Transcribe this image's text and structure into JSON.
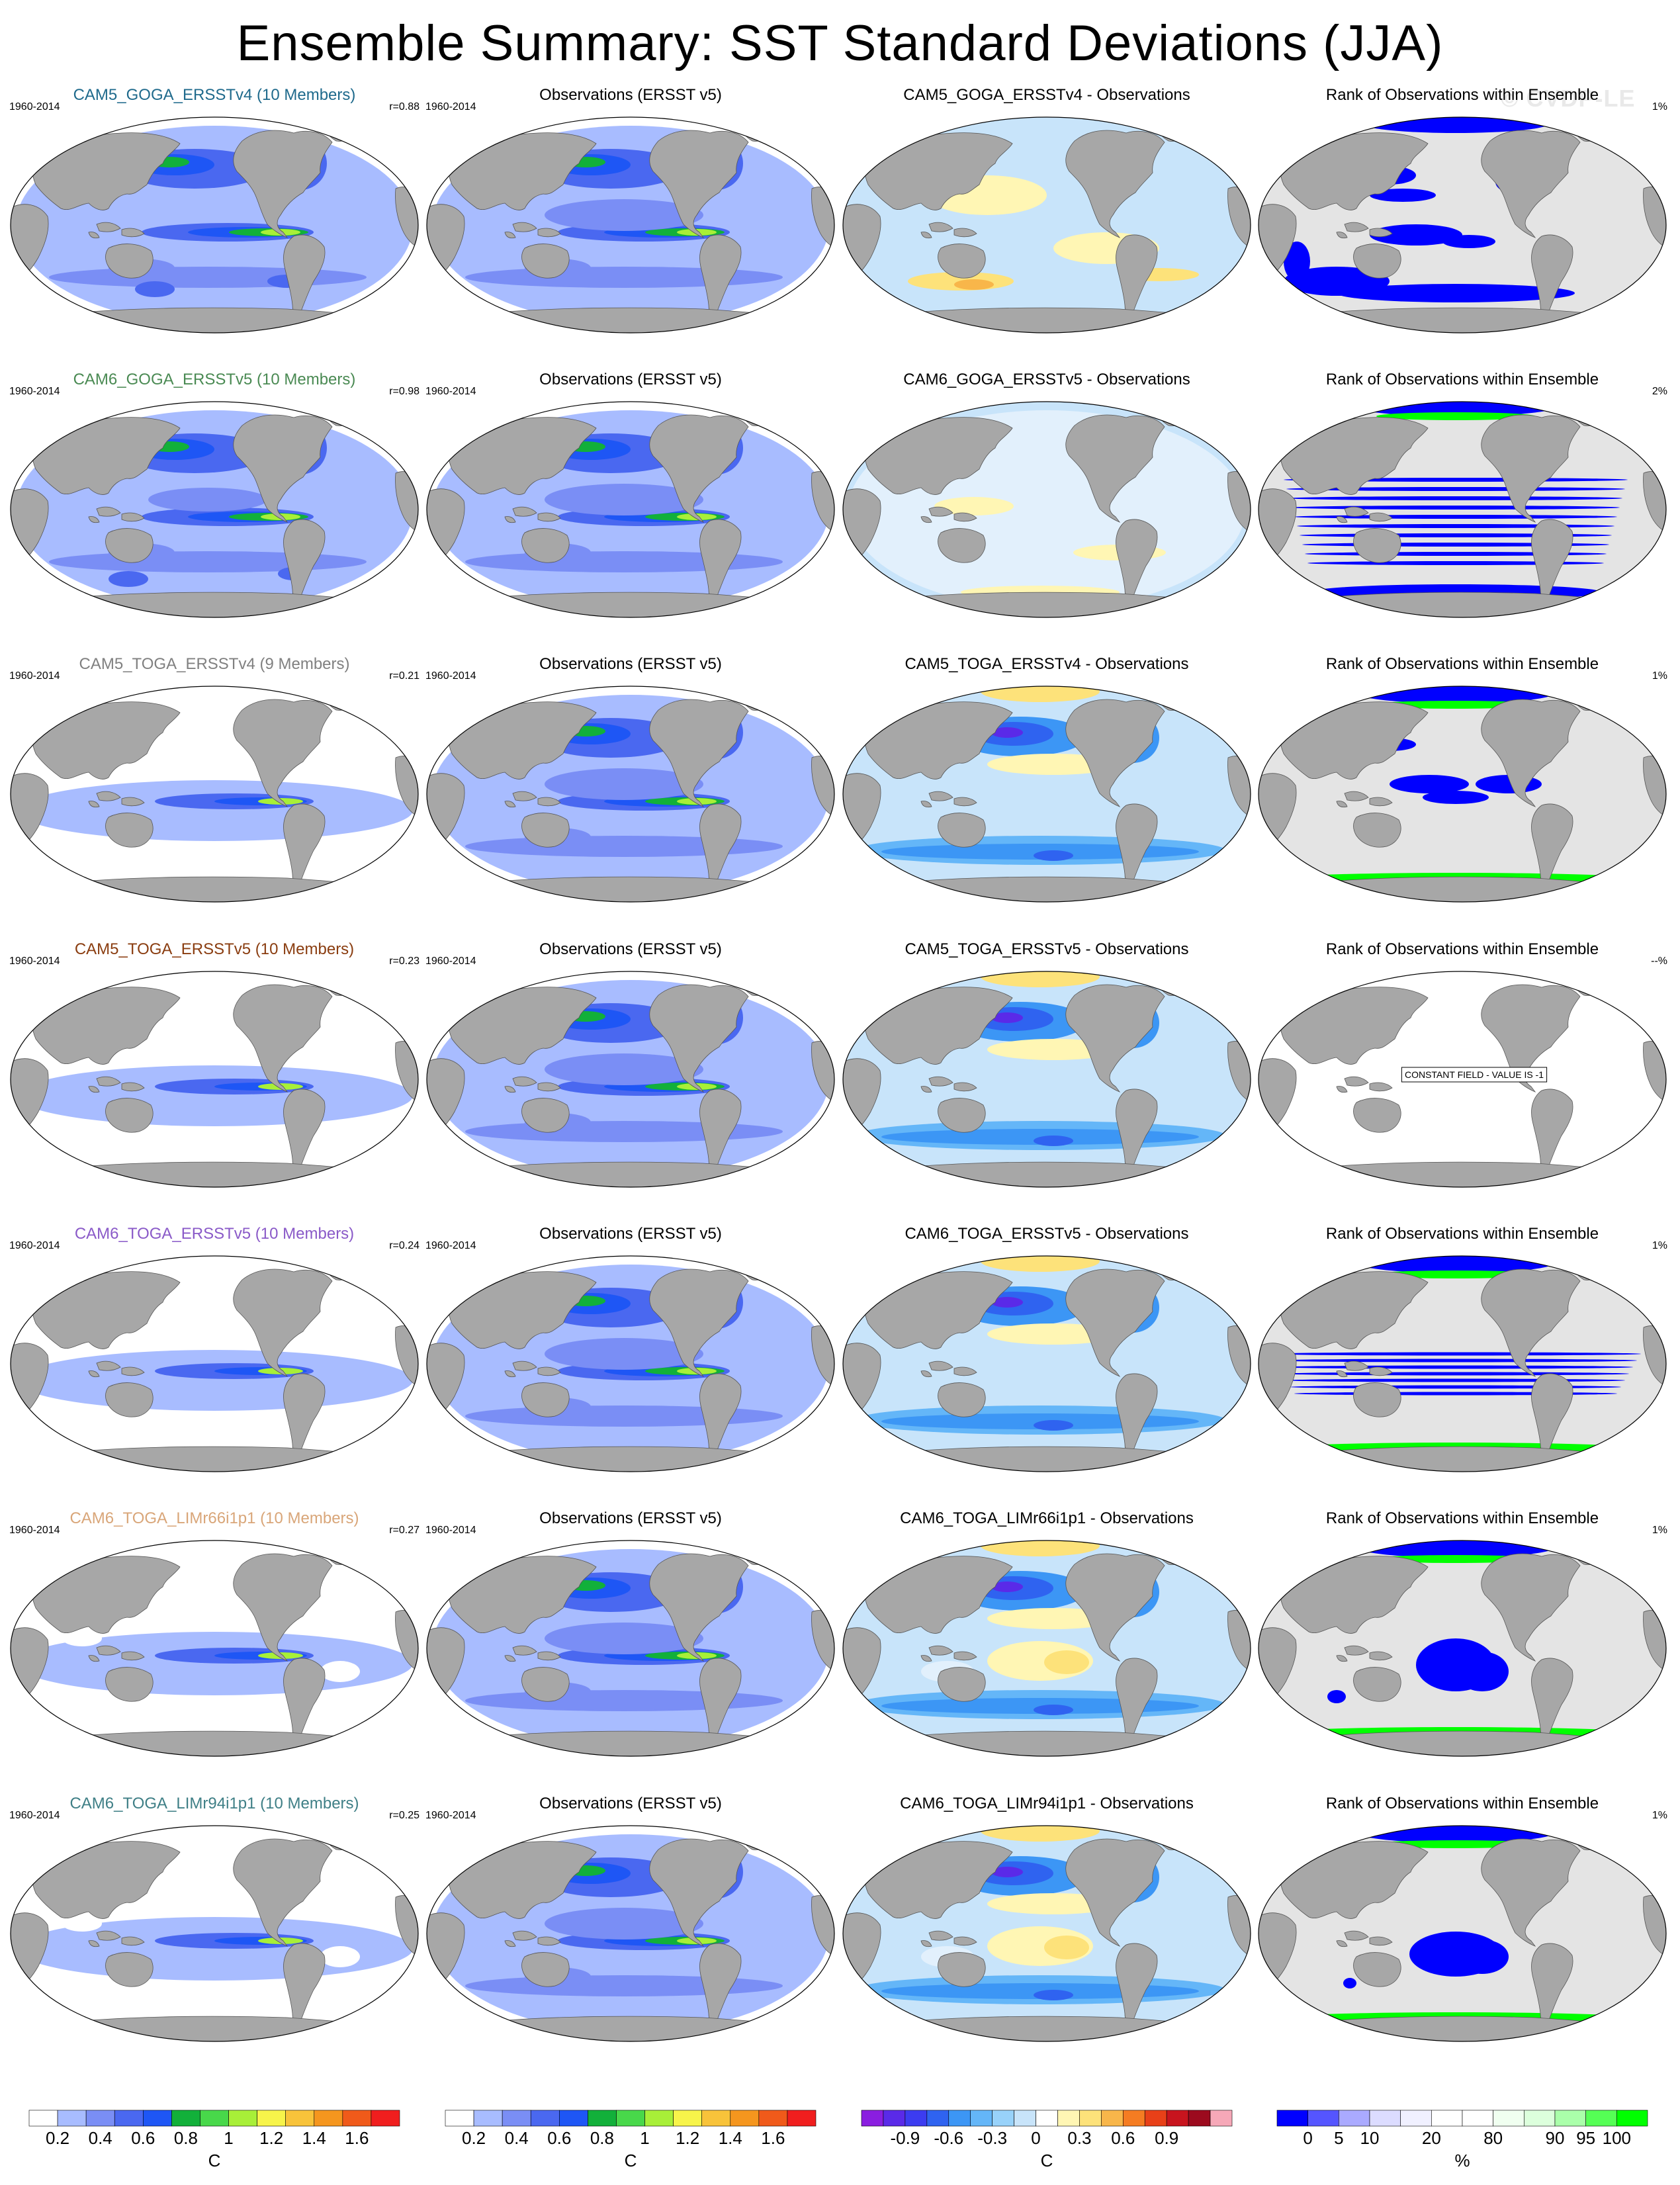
{
  "title": "Ensemble Summary: SST Standard Deviations (JJA)",
  "watermark": "© CVDP-LE",
  "colors": {
    "land": "#a7a7a7",
    "ocean_rank_bg": "#e4e4e4",
    "rank_low": "#0000ff",
    "rank_high": "#00ff00"
  },
  "rows": [
    {
      "model": {
        "title": "CAM5_GOGA_ERSSTv4 (10 Members)",
        "title_color": "#1f6a8c",
        "period": "1960-2014",
        "stat": "r=0.88",
        "pattern": "goga_v4"
      },
      "obs": {
        "title": "Observations (ERSST v5)",
        "period": "1960-2014"
      },
      "diff": {
        "title": "CAM5_GOGA_ERSSTv4 - Observations",
        "pattern": "goga_v4"
      },
      "rank": {
        "title": "Rank of Observations within Ensemble",
        "stat": "1%",
        "pattern": "r1"
      }
    },
    {
      "model": {
        "title": "CAM6_GOGA_ERSSTv5 (10 Members)",
        "title_color": "#4a8a53",
        "period": "1960-2014",
        "stat": "r=0.98",
        "pattern": "goga_v5"
      },
      "obs": {
        "title": "Observations (ERSST v5)",
        "period": "1960-2014"
      },
      "diff": {
        "title": "CAM6_GOGA_ERSSTv5 - Observations",
        "pattern": "goga_v5"
      },
      "rank": {
        "title": "Rank of Observations within Ensemble",
        "stat": "2%",
        "pattern": "r2"
      }
    },
    {
      "model": {
        "title": "CAM5_TOGA_ERSSTv4 (9 Members)",
        "title_color": "#808080",
        "period": "1960-2014",
        "stat": "r=0.21",
        "pattern": "toga"
      },
      "obs": {
        "title": "Observations (ERSST v5)",
        "period": "1960-2014"
      },
      "diff": {
        "title": "CAM5_TOGA_ERSSTv4 - Observations",
        "pattern": "toga"
      },
      "rank": {
        "title": "Rank of Observations within Ensemble",
        "stat": "1%",
        "pattern": "r3"
      }
    },
    {
      "model": {
        "title": "CAM5_TOGA_ERSSTv5 (10 Members)",
        "title_color": "#8a3d10",
        "period": "1960-2014",
        "stat": "r=0.23",
        "pattern": "toga"
      },
      "obs": {
        "title": "Observations (ERSST v5)",
        "period": "1960-2014"
      },
      "diff": {
        "title": "CAM5_TOGA_ERSSTv5 - Observations",
        "pattern": "toga"
      },
      "rank": {
        "title": "Rank of Observations within Ensemble",
        "stat": "--%",
        "pattern": "const",
        "note": "CONSTANT FIELD - VALUE IS -1"
      }
    },
    {
      "model": {
        "title": "CAM6_TOGA_ERSSTv5 (10 Members)",
        "title_color": "#8a5ac8",
        "period": "1960-2014",
        "stat": "r=0.24",
        "pattern": "toga"
      },
      "obs": {
        "title": "Observations (ERSST v5)",
        "period": "1960-2014"
      },
      "diff": {
        "title": "CAM6_TOGA_ERSSTv5 - Observations",
        "pattern": "toga"
      },
      "rank": {
        "title": "Rank of Observations within Ensemble",
        "stat": "1%",
        "pattern": "r5"
      }
    },
    {
      "model": {
        "title": "CAM6_TOGA_LIMr66i1p1 (10 Members)",
        "title_color": "#d9a679",
        "period": "1960-2014",
        "stat": "r=0.27",
        "pattern": "lim"
      },
      "obs": {
        "title": "Observations (ERSST v5)",
        "period": "1960-2014"
      },
      "diff": {
        "title": "CAM6_TOGA_LIMr66i1p1 - Observations",
        "pattern": "lim"
      },
      "rank": {
        "title": "Rank of Observations within Ensemble",
        "stat": "1%",
        "pattern": "r6"
      }
    },
    {
      "model": {
        "title": "CAM6_TOGA_LIMr94i1p1 (10 Members)",
        "title_color": "#3f7f86",
        "period": "1960-2014",
        "stat": "r=0.25",
        "pattern": "lim"
      },
      "obs": {
        "title": "Observations (ERSST v5)",
        "period": "1960-2014"
      },
      "diff": {
        "title": "CAM6_TOGA_LIMr94i1p1 - Observations",
        "pattern": "lim"
      },
      "rank": {
        "title": "Rank of Observations within Ensemble",
        "stat": "1%",
        "pattern": "r7"
      }
    }
  ],
  "colorbars": [
    {
      "colors": [
        "#ffffff",
        "#a8bcff",
        "#7a8ef5",
        "#4a68f0",
        "#1e56f5",
        "#12b03a",
        "#48d84a",
        "#a8ef38",
        "#f7f44a",
        "#f8c33a",
        "#f5961e",
        "#f05a1a",
        "#f01e1e"
      ],
      "ticks": [
        "0.2",
        "0.4",
        "0.6",
        "0.8",
        "1",
        "1.2",
        "1.4",
        "1.6"
      ],
      "unit": "C"
    },
    {
      "colors": [
        "#ffffff",
        "#a8bcff",
        "#7a8ef5",
        "#4a68f0",
        "#1e56f5",
        "#12b03a",
        "#48d84a",
        "#a8ef38",
        "#f7f44a",
        "#f8c33a",
        "#f5961e",
        "#f05a1a",
        "#f01e1e"
      ],
      "ticks": [
        "0.2",
        "0.4",
        "0.6",
        "0.8",
        "1",
        "1.2",
        "1.4",
        "1.6"
      ],
      "unit": "C"
    },
    {
      "colors": [
        "#8a1ee0",
        "#5a2ae8",
        "#3c3cf0",
        "#2f63f0",
        "#3c96f5",
        "#64b6f8",
        "#98d2fa",
        "#c8e4fa",
        "#ffffff",
        "#fff6b4",
        "#fde27a",
        "#f8b64a",
        "#f57c22",
        "#e84018",
        "#c8141e",
        "#9c0a1e",
        "#f6a8b8"
      ],
      "ticks": [
        "-0.9",
        "-0.6",
        "-0.3",
        "0",
        "0.3",
        "0.6",
        "0.9"
      ],
      "unit": "C"
    },
    {
      "colors": [
        "#0000ff",
        "#5555ff",
        "#aaaaff",
        "#dcdcff",
        "#f0f0ff",
        "#ffffff",
        "#ffffff",
        "#f0fff0",
        "#dcffdc",
        "#aaffaa",
        "#55ff55",
        "#00ff00"
      ],
      "ticks": [
        "0",
        "5",
        "10",
        "20",
        "80",
        "90",
        "95",
        "100"
      ],
      "unit": "%"
    }
  ]
}
